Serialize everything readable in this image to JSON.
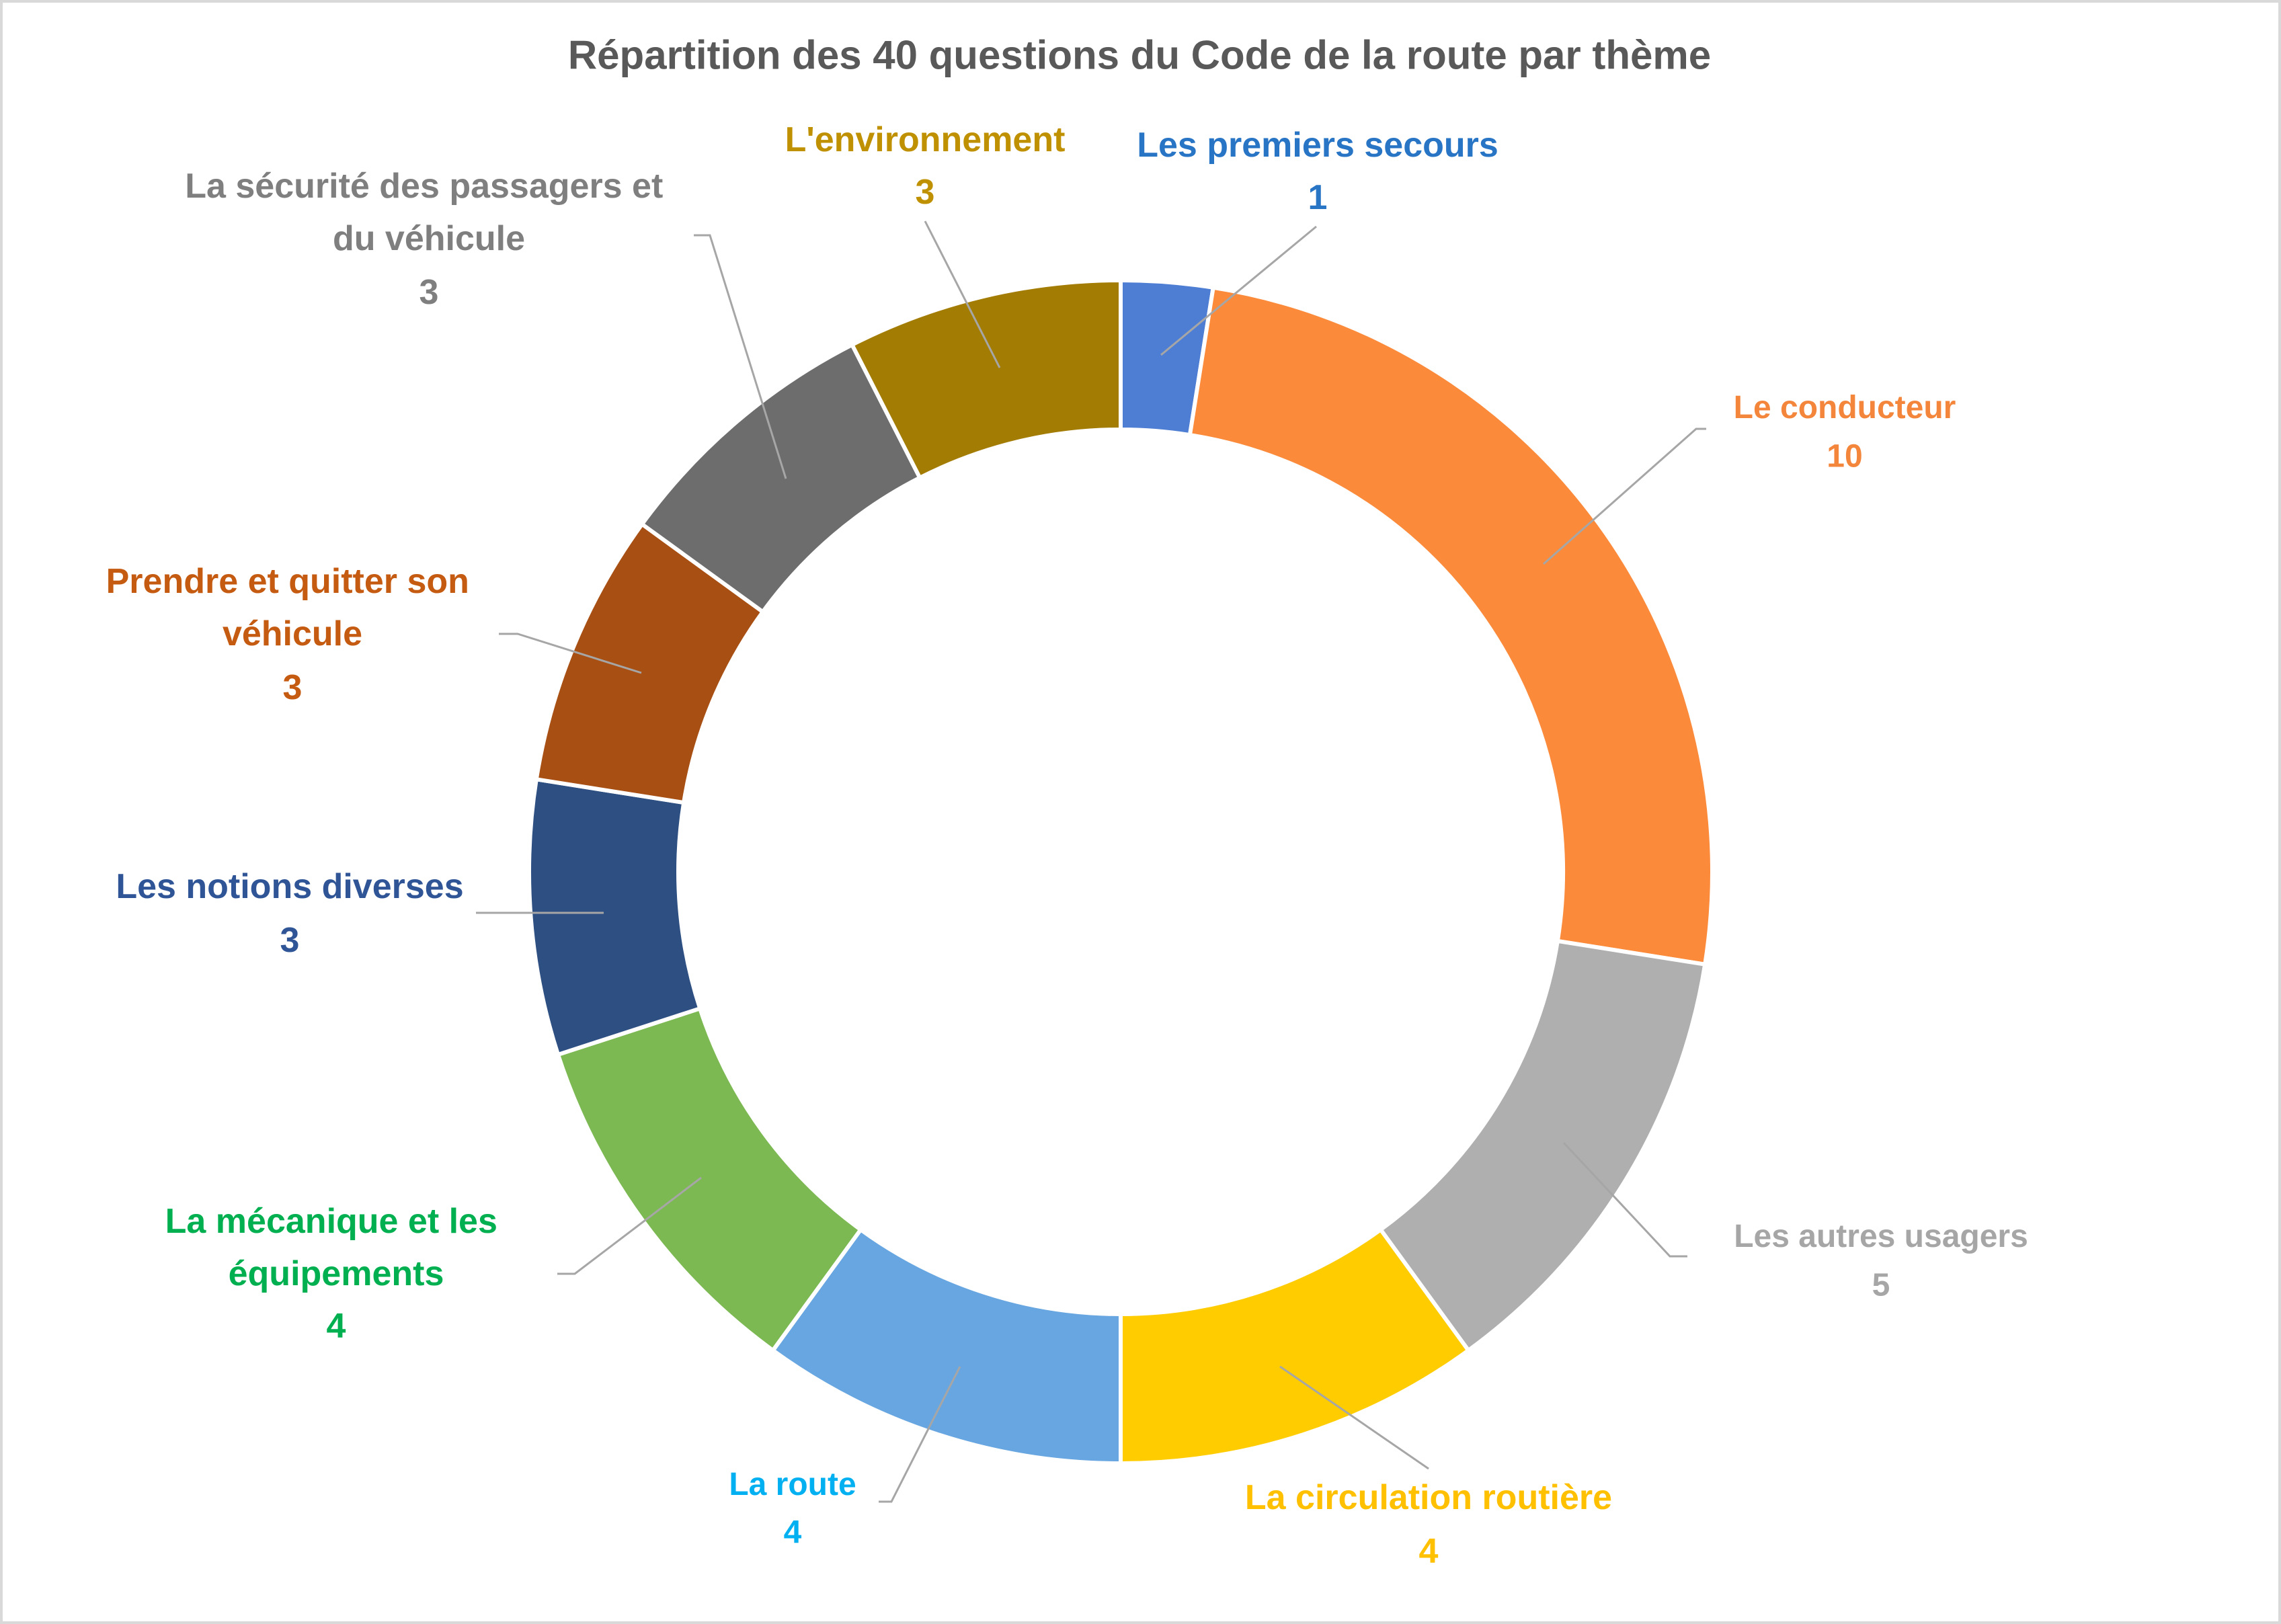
{
  "chart_data": {
    "type": "pie",
    "title": "Répartition des 40 questions du Code de la route par thème",
    "categories": [
      "Les premiers secours",
      "Le conducteur",
      "Les autres usagers",
      "La circulation routière",
      "La route",
      "La mécanique et les équipements",
      "Les notions diverses",
      "Prendre et quitter son véhicule",
      "La sécurité des passagers et du véhicule",
      "L'environnement"
    ],
    "values": [
      1,
      10,
      5,
      4,
      4,
      4,
      3,
      3,
      3,
      3
    ],
    "colors": [
      "#4e7ed3",
      "#fb8a3b",
      "#afafaf",
      "#ffcc00",
      "#67a6e0",
      "#7cb952",
      "#2e4f82",
      "#a84f14",
      "#6d6d6d",
      "#a37c04"
    ],
    "label_colors": [
      "#2874c5",
      "#f4863c",
      "#a6a6a6",
      "#ffc000",
      "#00b0f0",
      "#00b050",
      "#2f5597",
      "#c55a11",
      "#7f7f7f",
      "#bf9000"
    ],
    "legend": "none"
  }
}
